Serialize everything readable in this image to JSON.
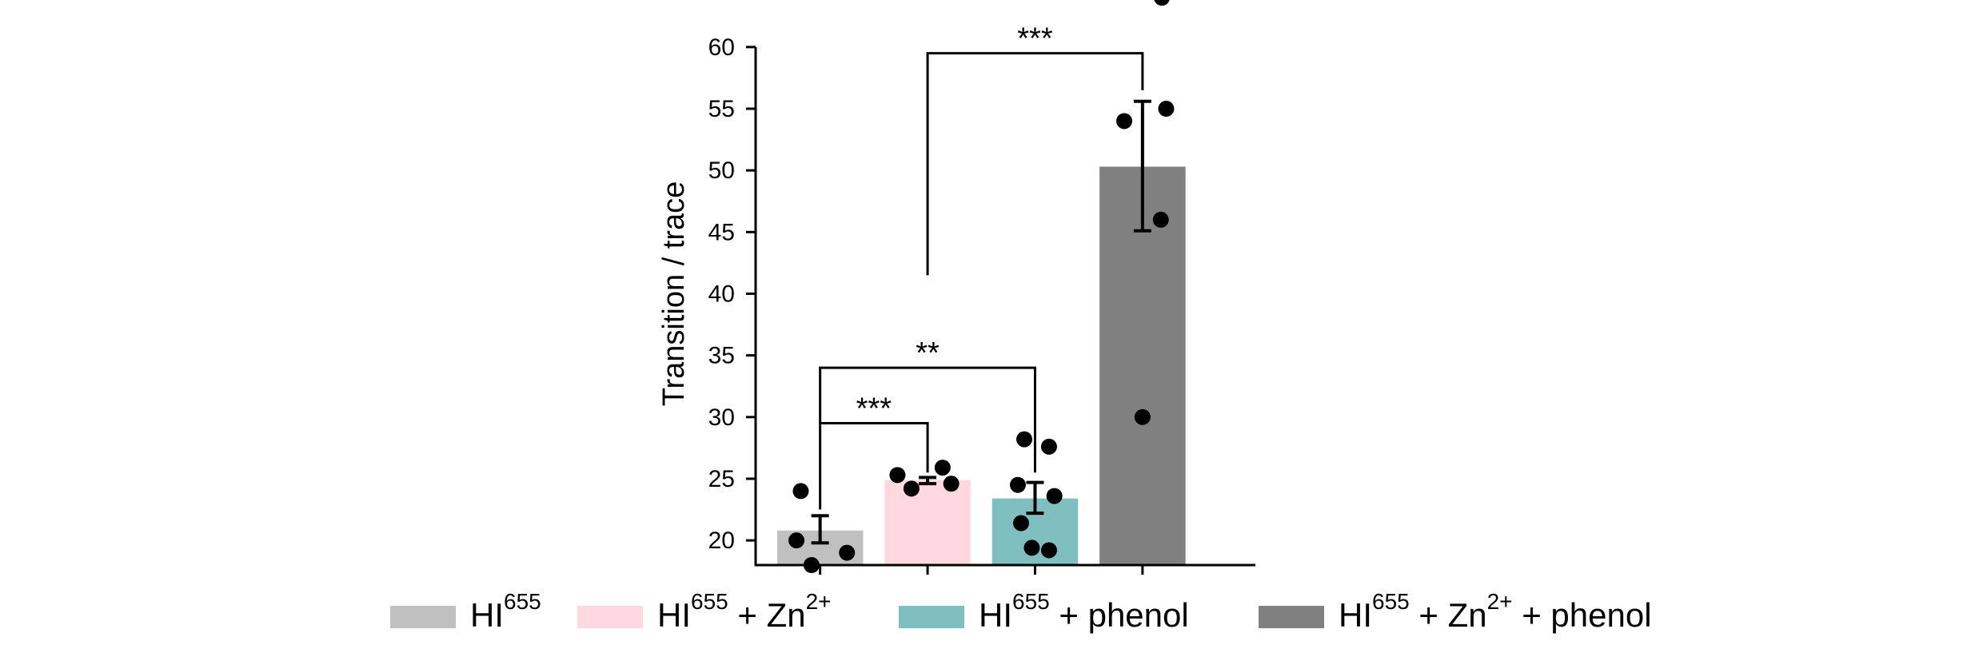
{
  "chart_data": {
    "type": "bar",
    "ylabel": "Transition / trace",
    "yticks": [
      20,
      25,
      30,
      35,
      40,
      45,
      50,
      55,
      60
    ],
    "ylim": [
      18,
      62
    ],
    "grid": false,
    "legend_position": "bottom",
    "categories": [
      "HI655",
      "HI655 + Zn2+",
      "HI655 + phenol",
      "HI655 + Zn2+ + phenol"
    ],
    "bars": [
      {
        "name": "HI655",
        "value": 20.8,
        "err_low": 19.8,
        "err_high": 22.0,
        "color": "#c0c0c0",
        "points": [
          [
            -0.18,
            24.0
          ],
          [
            -0.22,
            20.0
          ],
          [
            -0.08,
            18.0
          ],
          [
            0.25,
            19.0
          ]
        ]
      },
      {
        "name": "HI655 + Zn2+",
        "value": 24.9,
        "err_low": 24.6,
        "err_high": 25.1,
        "color": "#ffd9df",
        "points": [
          [
            -0.28,
            25.3
          ],
          [
            -0.15,
            24.2
          ],
          [
            0.14,
            25.9
          ],
          [
            0.22,
            24.6
          ]
        ]
      },
      {
        "name": "HI655 + phenol",
        "value": 23.4,
        "err_low": 22.2,
        "err_high": 24.7,
        "color": "#7fbfbf",
        "points": [
          [
            -0.1,
            28.2
          ],
          [
            0.13,
            27.6
          ],
          [
            -0.16,
            24.5
          ],
          [
            0.18,
            23.6
          ],
          [
            -0.13,
            21.4
          ],
          [
            -0.03,
            19.4
          ],
          [
            0.13,
            19.2
          ]
        ]
      },
      {
        "name": "HI655 + Zn2+ + phenol",
        "value": 50.3,
        "err_low": 45.1,
        "err_high": 55.6,
        "color": "#808080",
        "points": [
          [
            0.18,
            64.0
          ],
          [
            -0.17,
            54.0
          ],
          [
            0.22,
            55.0
          ],
          [
            0.17,
            46.0
          ],
          [
            0.0,
            30.0
          ]
        ]
      }
    ],
    "significance": [
      {
        "from": 0,
        "to": 1,
        "y": 29.5,
        "left_drop": 22.5,
        "right_drop": 25.5,
        "label": "***"
      },
      {
        "from": 0,
        "to": 2,
        "y": 34.0,
        "left_drop": 29.5,
        "right_drop": 25.5,
        "label": "**"
      },
      {
        "from": 1,
        "to": 3,
        "y": 59.5,
        "left_drop": 41.5,
        "right_drop": 56.5,
        "label": "***"
      }
    ]
  },
  "legend": [
    {
      "base": "HI",
      "sup1": "655",
      "mid": "",
      "sup2": "",
      "tail": "",
      "color": "#c0c0c0"
    },
    {
      "base": "HI",
      "sup1": "655",
      "mid": " + Zn",
      "sup2": "2+",
      "tail": "",
      "color": "#ffd9df"
    },
    {
      "base": "HI",
      "sup1": "655",
      "mid": " + phenol",
      "sup2": "",
      "tail": "",
      "color": "#7fbfbf"
    },
    {
      "base": "HI",
      "sup1": "655",
      "mid": " + Zn",
      "sup2": "2+",
      "tail": " + phenol",
      "color": "#808080"
    }
  ]
}
